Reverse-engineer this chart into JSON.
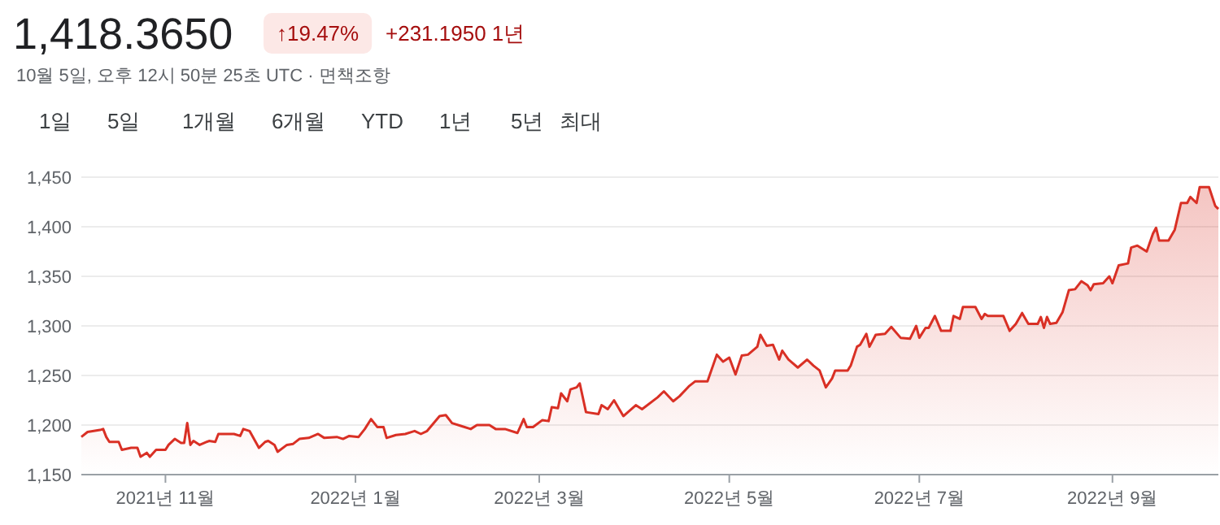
{
  "chart_data": {
    "type": "area",
    "title": "1,418.3650",
    "subtitle": "10월 5일, 오후 12시 50분 25초 UTC · 면책조항",
    "annotations": [
      "↑19.47%",
      "+231.1950 1년",
      "1일",
      "5일",
      "1개월",
      "6개월",
      "YTD",
      "1년",
      "5년",
      "최대"
    ],
    "xlim": [
      "2021-10-05",
      "2022-10-05"
    ],
    "xticks": [
      {
        "value": "2021-11-01",
        "label": "2021년 11월"
      },
      {
        "value": "2022-01-01",
        "label": "2022년 1월"
      },
      {
        "value": "2022-03-01",
        "label": "2022년 3월"
      },
      {
        "value": "2022-05-01",
        "label": "2022년 5월"
      },
      {
        "value": "2022-07-01",
        "label": "2022년 7월"
      },
      {
        "value": "2022-09-01",
        "label": "2022년 9월"
      }
    ],
    "ylim": [
      1150,
      1450
    ],
    "yticks": [
      {
        "value": 1150,
        "label": "1,150"
      },
      {
        "value": 1200,
        "label": "1,200"
      },
      {
        "value": 1250,
        "label": "1,250"
      },
      {
        "value": 1300,
        "label": "1,300"
      },
      {
        "value": 1350,
        "label": "1,350"
      },
      {
        "value": 1400,
        "label": "1,400"
      },
      {
        "value": 1450,
        "label": "1,450"
      }
    ],
    "grid": "y",
    "series": [
      {
        "color": "#d93025",
        "x": [
          "2021-10-05",
          "2021-10-07",
          "2021-10-11",
          "2021-10-12",
          "2021-10-13",
          "2021-10-14",
          "2021-10-17",
          "2021-10-18",
          "2021-10-21",
          "2021-10-23",
          "2021-10-24",
          "2021-10-26",
          "2021-10-27",
          "2021-10-29",
          "2021-11-01",
          "2021-11-02",
          "2021-11-04",
          "2021-11-06",
          "2021-11-07",
          "2021-11-08",
          "2021-11-09",
          "2021-11-10",
          "2021-11-12",
          "2021-11-15",
          "2021-11-17",
          "2021-11-18",
          "2021-11-23",
          "2021-11-25",
          "2021-11-26",
          "2021-11-28",
          "2021-12-01",
          "2021-12-03",
          "2021-12-04",
          "2021-12-06",
          "2021-12-07",
          "2021-12-10",
          "2021-12-12",
          "2021-12-14",
          "2021-12-17",
          "2021-12-20",
          "2021-12-22",
          "2021-12-26",
          "2021-12-28",
          "2021-12-30",
          "2022-01-02",
          "2022-01-04",
          "2022-01-06",
          "2022-01-08",
          "2022-01-10",
          "2022-01-11",
          "2022-01-14",
          "2022-01-17",
          "2022-01-20",
          "2022-01-22",
          "2022-01-24",
          "2022-01-28",
          "2022-01-30",
          "2022-02-01",
          "2022-02-04",
          "2022-02-07",
          "2022-02-09",
          "2022-02-13",
          "2022-02-15",
          "2022-02-18",
          "2022-02-22",
          "2022-02-24",
          "2022-02-25",
          "2022-02-27",
          "2022-03-02",
          "2022-03-04",
          "2022-03-05",
          "2022-03-07",
          "2022-03-08",
          "2022-03-10",
          "2022-03-11",
          "2022-03-13",
          "2022-03-14",
          "2022-03-16",
          "2022-03-20",
          "2022-03-21",
          "2022-03-23",
          "2022-03-25",
          "2022-03-28",
          "2022-04-01",
          "2022-04-03",
          "2022-04-08",
          "2022-04-10",
          "2022-04-13",
          "2022-04-15",
          "2022-04-18",
          "2022-04-20",
          "2022-04-24",
          "2022-04-27",
          "2022-04-29",
          "2022-05-01",
          "2022-05-03",
          "2022-05-05",
          "2022-05-07",
          "2022-05-10",
          "2022-05-11",
          "2022-05-13",
          "2022-05-15",
          "2022-05-17",
          "2022-05-18",
          "2022-05-20",
          "2022-05-23",
          "2022-05-26",
          "2022-05-28",
          "2022-05-30",
          "2022-06-01",
          "2022-06-03",
          "2022-06-04",
          "2022-06-08",
          "2022-06-09",
          "2022-06-11",
          "2022-06-12",
          "2022-06-14",
          "2022-06-15",
          "2022-06-17",
          "2022-06-20",
          "2022-06-22",
          "2022-06-25",
          "2022-06-28",
          "2022-06-30",
          "2022-07-01",
          "2022-07-03",
          "2022-07-04",
          "2022-07-06",
          "2022-07-08",
          "2022-07-11",
          "2022-07-12",
          "2022-07-14",
          "2022-07-15",
          "2022-07-19",
          "2022-07-21",
          "2022-07-22",
          "2022-07-23",
          "2022-07-28",
          "2022-07-30",
          "2022-08-01",
          "2022-08-03",
          "2022-08-05",
          "2022-08-08",
          "2022-08-09",
          "2022-08-10",
          "2022-08-11",
          "2022-08-12",
          "2022-08-14",
          "2022-08-16",
          "2022-08-18",
          "2022-08-20",
          "2022-08-22",
          "2022-08-24",
          "2022-08-25",
          "2022-08-26",
          "2022-08-29",
          "2022-08-31",
          "2022-09-01",
          "2022-09-03",
          "2022-09-06",
          "2022-09-07",
          "2022-09-09",
          "2022-09-12",
          "2022-09-14",
          "2022-09-15",
          "2022-09-16",
          "2022-09-19",
          "2022-09-21",
          "2022-09-23",
          "2022-09-25",
          "2022-09-26",
          "2022-09-28",
          "2022-09-29",
          "2022-10-02",
          "2022-10-04",
          "2022-10-05"
        ],
        "values": [
          1188,
          1193,
          1195,
          1196,
          1188,
          1183,
          1183,
          1175,
          1177,
          1177,
          1168,
          1172,
          1168,
          1175,
          1175,
          1180,
          1186,
          1182,
          1182,
          1202,
          1180,
          1184,
          1180,
          1184,
          1183,
          1191,
          1191,
          1189,
          1196,
          1194,
          1177,
          1183,
          1184,
          1180,
          1173,
          1180,
          1181,
          1186,
          1187,
          1191,
          1187,
          1188,
          1186,
          1189,
          1188,
          1196,
          1206,
          1198,
          1198,
          1187,
          1190,
          1191,
          1194,
          1191,
          1194,
          1209,
          1210,
          1202,
          1199,
          1196,
          1200,
          1200,
          1196,
          1196,
          1192,
          1206,
          1198,
          1198,
          1205,
          1204,
          1218,
          1217,
          1232,
          1224,
          1236,
          1238,
          1242,
          1213,
          1211,
          1220,
          1216,
          1225,
          1209,
          1220,
          1216,
          1228,
          1234,
          1224,
          1229,
          1239,
          1244,
          1244,
          1271,
          1264,
          1268,
          1251,
          1270,
          1271,
          1279,
          1291,
          1280,
          1281,
          1266,
          1275,
          1266,
          1258,
          1266,
          1260,
          1255,
          1238,
          1247,
          1255,
          1255,
          1260,
          1279,
          1281,
          1292,
          1279,
          1291,
          1292,
          1299,
          1288,
          1287,
          1300,
          1288,
          1298,
          1298,
          1310,
          1295,
          1295,
          1310,
          1307,
          1319,
          1319,
          1307,
          1312,
          1310,
          1310,
          1295,
          1302,
          1313,
          1302,
          1302,
          1309,
          1298,
          1309,
          1302,
          1303,
          1314,
          1336,
          1337,
          1345,
          1341,
          1336,
          1342,
          1343,
          1350,
          1343,
          1361,
          1363,
          1379,
          1381,
          1375,
          1393,
          1399,
          1386,
          1386,
          1397,
          1424,
          1424,
          1430,
          1424,
          1440,
          1440,
          1421,
          1418
        ]
      }
    ]
  }
}
